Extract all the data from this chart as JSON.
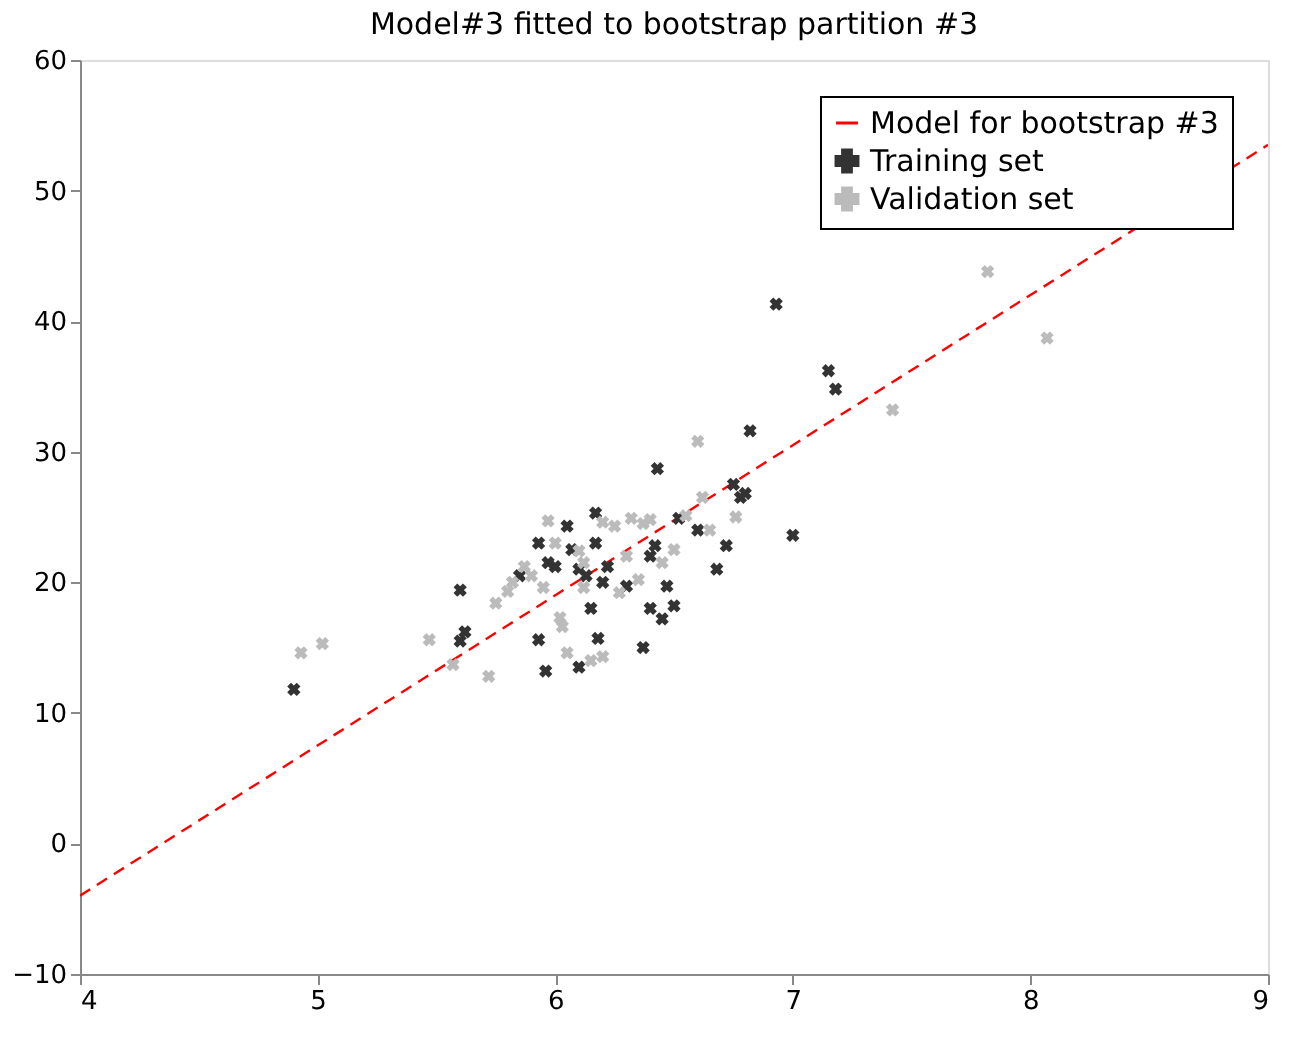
{
  "chart_data": {
    "type": "scatter",
    "title": "Model#3 fitted to bootstrap partition #3",
    "xlim": [
      4,
      9
    ],
    "ylim": [
      -10,
      60
    ],
    "xticks": [
      4,
      5,
      6,
      7,
      8,
      9
    ],
    "yticks": [
      -10,
      0,
      10,
      20,
      30,
      40,
      50,
      60
    ],
    "grid": false,
    "legend": "top right",
    "marker": "cross",
    "series": [
      {
        "name": "Model for bootstrap #3",
        "type": "line",
        "line_style": "dashed",
        "marker": "none",
        "color": "#ff0000",
        "x": [
          4,
          9
        ],
        "values": [
          -4,
          53.5
        ]
      },
      {
        "name": "Training set",
        "color": "#333333",
        "x": [
          4.9,
          5.6,
          5.6,
          5.62,
          5.85,
          5.93,
          5.93,
          5.96,
          5.97,
          6.0,
          6.05,
          6.07,
          6.1,
          6.1,
          6.13,
          6.15,
          6.17,
          6.17,
          6.18,
          6.2,
          6.22,
          6.3,
          6.37,
          6.4,
          6.4,
          6.42,
          6.43,
          6.45,
          6.47,
          6.5,
          6.52,
          6.6,
          6.68,
          6.72,
          6.75,
          6.78,
          6.8,
          6.82,
          6.93,
          7.0,
          7.15,
          7.18
        ],
        "values": [
          11.8,
          19.4,
          15.5,
          16.2,
          20.5,
          23,
          15.6,
          13.2,
          21.5,
          21.2,
          24.3,
          22.5,
          21,
          13.5,
          20.5,
          18,
          25.3,
          23,
          15.7,
          20,
          21.2,
          19.7,
          15,
          18,
          22,
          22.8,
          28.7,
          17.2,
          19.7,
          18.2,
          24.9,
          24,
          21,
          22.8,
          27.5,
          26.5,
          26.8,
          31.6,
          41.3,
          23.6,
          36.2,
          34.8
        ]
      },
      {
        "name": "Validation set",
        "color": "#bbbbbb",
        "x": [
          4.93,
          5.02,
          5.47,
          5.57,
          5.72,
          5.75,
          5.8,
          5.82,
          5.87,
          5.9,
          5.95,
          5.97,
          6.0,
          6.02,
          6.05,
          6.03,
          6.1,
          6.12,
          6.12,
          6.15,
          6.2,
          6.2,
          6.25,
          6.27,
          6.3,
          6.32,
          6.35,
          6.37,
          6.4,
          6.45,
          6.5,
          6.55,
          6.6,
          6.62,
          6.65,
          6.76,
          7.42,
          7.82,
          8.07
        ],
        "values": [
          14.6,
          15.3,
          15.6,
          13.7,
          12.8,
          18.4,
          19.3,
          20,
          21.2,
          20.5,
          19.6,
          24.7,
          23,
          17.3,
          14.6,
          16.6,
          22.4,
          19.6,
          21.5,
          14,
          14.3,
          24.6,
          24.3,
          19.2,
          22,
          24.9,
          20.2,
          24.5,
          24.8,
          21.5,
          22.5,
          25.1,
          30.8,
          26.5,
          24,
          25,
          33.2,
          43.8,
          38.7
        ]
      }
    ]
  }
}
